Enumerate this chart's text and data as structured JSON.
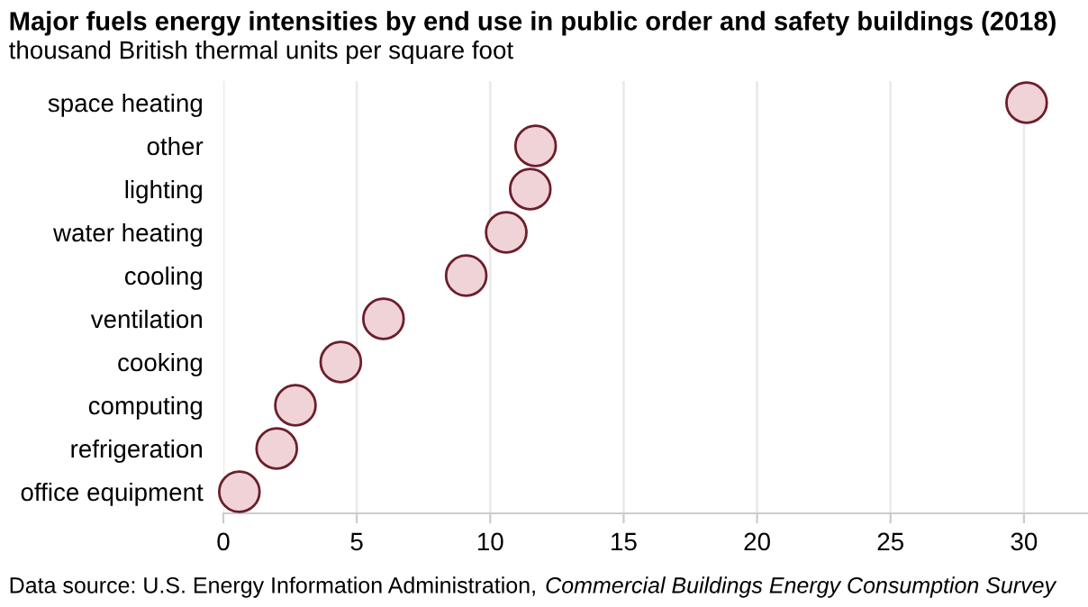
{
  "chart_data": {
    "type": "scatter",
    "title": "Major fuels energy intensities by end use in public order and safety buildings (2018)",
    "subtitle": "thousand British thermal units per square foot",
    "categories": [
      "space heating",
      "other",
      "lighting",
      "water heating",
      "cooling",
      "ventilation",
      "cooking",
      "computing",
      "refrigeration",
      "office equipment"
    ],
    "orientation": "horizontal",
    "series": [
      {
        "values": [
          30.1,
          11.7,
          11.5,
          10.6,
          9.1,
          6.0,
          4.4,
          2.7,
          2.0,
          0.6
        ],
        "color": "#f0d3d7"
      }
    ],
    "xlim": [
      0,
      32.4
    ],
    "xticks": [
      0,
      5,
      10,
      15,
      20,
      25,
      30
    ],
    "grid": "x",
    "marker": "circle",
    "annotations": [
      "Data source: U.S. Energy Information Administration,",
      "Commercial Buildings Energy Consumption Survey"
    ]
  }
}
